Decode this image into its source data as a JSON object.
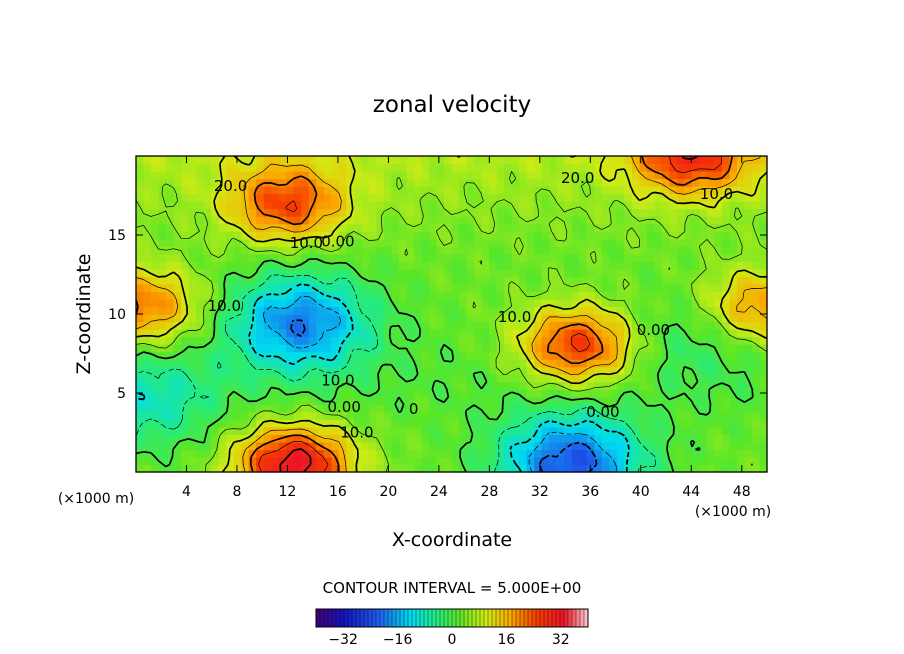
{
  "chart_data": {
    "type": "contour",
    "title": "zonal velocity",
    "xlabel": "X-coordinate",
    "ylabel": "Z-coordinate",
    "x_unit": "(×1000 m)",
    "x_range": [
      0,
      50
    ],
    "y_range": [
      0,
      20
    ],
    "x_ticks": [
      4,
      8,
      12,
      16,
      20,
      24,
      28,
      32,
      36,
      40,
      44,
      48
    ],
    "y_ticks": [
      5,
      10,
      15
    ],
    "contour_interval_text": "CONTOUR INTERVAL = 5.000E+00",
    "contour_interval": 5,
    "colorbar": {
      "min": -40,
      "max": 40,
      "ticks": [
        -32,
        -16,
        0,
        16,
        32
      ]
    },
    "contour_labels": [
      {
        "text": "20.0",
        "x": 7.5,
        "z": 18.1
      },
      {
        "text": "20.0",
        "x": 35.0,
        "z": 18.6
      },
      {
        "text": "10.0",
        "x": 46.0,
        "z": 17.6
      },
      {
        "text": "10.0",
        "x": 13.5,
        "z": 14.5
      },
      {
        "text": "0.00",
        "x": 16.0,
        "z": 14.6
      },
      {
        "text": "10.0",
        "x": 7.0,
        "z": 10.5
      },
      {
        "text": "10.0",
        "x": 30.0,
        "z": 9.8
      },
      {
        "text": "0.00",
        "x": 41.0,
        "z": 9.0
      },
      {
        "text": "10.0",
        "x": 16.0,
        "z": 5.8
      },
      {
        "text": "0.00",
        "x": 16.5,
        "z": 4.1
      },
      {
        "text": "0.00",
        "x": 37.0,
        "z": 3.8
      },
      {
        "text": "10.0",
        "x": 17.5,
        "z": 2.5
      },
      {
        "text": "0",
        "x": 22.0,
        "z": 4.0
      }
    ],
    "features": [
      {
        "kind": "max",
        "value": 30,
        "x": 12.5,
        "z": 0.5
      },
      {
        "kind": "max",
        "value": 24,
        "x": 35.0,
        "z": 8.0
      },
      {
        "kind": "max",
        "value": 18,
        "x": 0.5,
        "z": 10.5
      },
      {
        "kind": "max",
        "value": 22,
        "x": 44.0,
        "z": 20.0
      },
      {
        "kind": "max",
        "value": 20,
        "x": 12.0,
        "z": 17.0
      },
      {
        "kind": "max",
        "value": 16,
        "x": 49.5,
        "z": 10.5
      },
      {
        "kind": "min",
        "value": -22,
        "x": 13.0,
        "z": 9.5
      },
      {
        "kind": "min",
        "value": -26,
        "x": 34.5,
        "z": 0.6
      },
      {
        "kind": "min",
        "value": -10,
        "x": 1.0,
        "z": 4.5
      },
      {
        "kind": "min",
        "value": -5,
        "x": 44.0,
        "z": 8.5
      }
    ]
  }
}
